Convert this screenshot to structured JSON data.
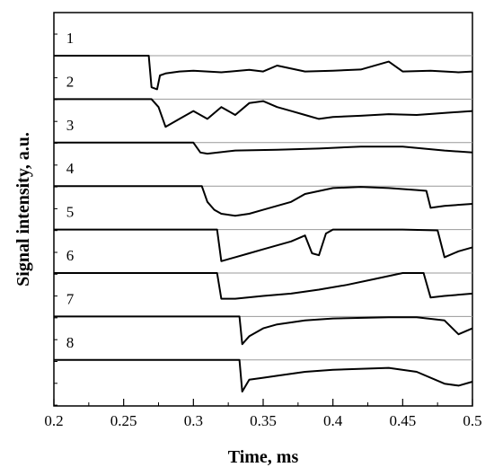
{
  "chart_data": {
    "type": "line",
    "title": "",
    "xlabel": "Time, ms",
    "ylabel": "Signal intensity, a.u.",
    "xlim": [
      0.2,
      0.5
    ],
    "xticks": [
      "0.2",
      "0.25",
      "0.3",
      "0.35",
      "0.4",
      "0.45",
      "0.5"
    ],
    "grid": "horizontal baselines per trace",
    "legend": "none; traces labeled 1-8 at left",
    "series": [
      {
        "name": "1",
        "baseline": 1,
        "x": [
          0.2,
          0.268,
          0.27,
          0.274,
          0.276,
          0.28,
          0.29,
          0.3,
          0.32,
          0.34,
          0.35,
          0.36,
          0.38,
          0.4,
          0.42,
          0.44,
          0.45,
          0.47,
          0.49,
          0.5
        ],
        "y": [
          1.0,
          1.0,
          0.2,
          0.15,
          0.5,
          0.55,
          0.6,
          0.62,
          0.58,
          0.64,
          0.6,
          0.75,
          0.6,
          0.62,
          0.65,
          0.85,
          0.6,
          0.62,
          0.58,
          0.6
        ]
      },
      {
        "name": "2",
        "baseline": 2,
        "x": [
          0.2,
          0.27,
          0.275,
          0.28,
          0.29,
          0.3,
          0.31,
          0.32,
          0.33,
          0.34,
          0.35,
          0.36,
          0.37,
          0.38,
          0.39,
          0.4,
          0.42,
          0.44,
          0.46,
          0.48,
          0.5
        ],
        "y": [
          1.0,
          1.0,
          0.8,
          0.3,
          0.5,
          0.7,
          0.5,
          0.8,
          0.6,
          0.9,
          0.95,
          0.8,
          0.7,
          0.6,
          0.5,
          0.55,
          0.58,
          0.62,
          0.6,
          0.65,
          0.7
        ]
      },
      {
        "name": "3",
        "baseline": 3,
        "x": [
          0.2,
          0.3,
          0.305,
          0.31,
          0.33,
          0.36,
          0.39,
          0.42,
          0.45,
          0.48,
          0.5
        ],
        "y": [
          1.0,
          1.0,
          0.75,
          0.72,
          0.8,
          0.82,
          0.85,
          0.9,
          0.9,
          0.8,
          0.75
        ]
      },
      {
        "name": "4",
        "baseline": 4,
        "x": [
          0.2,
          0.306,
          0.31,
          0.315,
          0.32,
          0.33,
          0.34,
          0.35,
          0.37,
          0.38,
          0.4,
          0.42,
          0.44,
          0.46,
          0.467,
          0.47,
          0.48,
          0.5
        ],
        "y": [
          1.0,
          1.0,
          0.6,
          0.4,
          0.3,
          0.25,
          0.3,
          0.4,
          0.6,
          0.8,
          0.95,
          0.98,
          0.95,
          0.9,
          0.88,
          0.45,
          0.5,
          0.55
        ]
      },
      {
        "name": "5",
        "baseline": 5,
        "x": [
          0.2,
          0.317,
          0.32,
          0.33,
          0.34,
          0.35,
          0.36,
          0.37,
          0.38,
          0.385,
          0.39,
          0.395,
          0.4,
          0.45,
          0.475,
          0.48,
          0.49,
          0.5
        ],
        "y": [
          1.0,
          1.0,
          0.2,
          0.3,
          0.4,
          0.5,
          0.6,
          0.7,
          0.85,
          0.4,
          0.35,
          0.9,
          1.0,
          1.0,
          0.98,
          0.3,
          0.45,
          0.55
        ]
      },
      {
        "name": "6",
        "baseline": 6,
        "x": [
          0.2,
          0.317,
          0.32,
          0.33,
          0.35,
          0.37,
          0.39,
          0.41,
          0.43,
          0.45,
          0.465,
          0.47,
          0.48,
          0.5
        ],
        "y": [
          1.0,
          1.0,
          0.35,
          0.35,
          0.42,
          0.48,
          0.58,
          0.7,
          0.85,
          1.0,
          1.0,
          0.38,
          0.42,
          0.48
        ]
      },
      {
        "name": "7",
        "baseline": 7,
        "x": [
          0.2,
          0.333,
          0.335,
          0.34,
          0.35,
          0.36,
          0.38,
          0.4,
          0.44,
          0.46,
          0.48,
          0.49,
          0.5
        ],
        "y": [
          1.0,
          1.0,
          0.3,
          0.5,
          0.7,
          0.8,
          0.9,
          0.95,
          0.98,
          0.98,
          0.9,
          0.55,
          0.7
        ]
      },
      {
        "name": "8",
        "baseline": 8,
        "x": [
          0.2,
          0.333,
          0.335,
          0.34,
          0.35,
          0.36,
          0.38,
          0.4,
          0.44,
          0.46,
          0.48,
          0.49,
          0.5
        ],
        "y": [
          1.0,
          1.0,
          0.2,
          0.5,
          0.55,
          0.6,
          0.7,
          0.75,
          0.8,
          0.7,
          0.4,
          0.35,
          0.45
        ]
      }
    ]
  }
}
